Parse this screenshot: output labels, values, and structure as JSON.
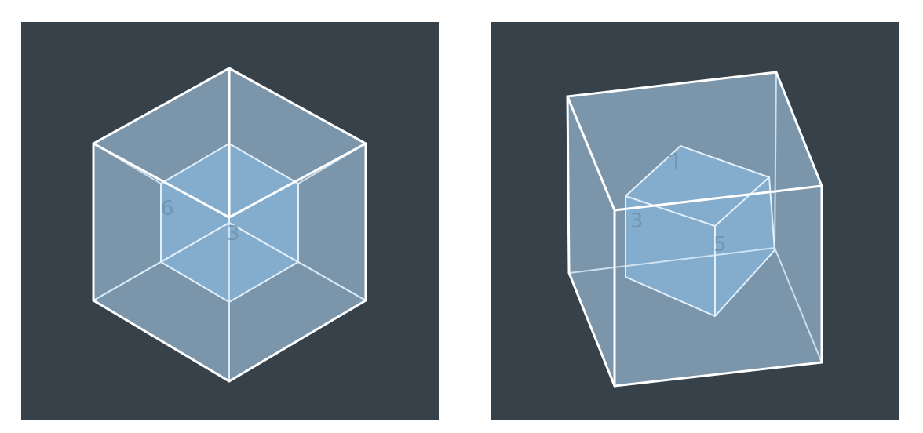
{
  "figures": [
    {
      "id": "left",
      "face_labels": [
        "6",
        "3"
      ]
    },
    {
      "id": "right",
      "face_labels": [
        "7",
        "3",
        "5"
      ]
    }
  ],
  "colors": {
    "background": "#36414a",
    "outer_face": "#a6cbe6",
    "inner_face": "#8cc0ea",
    "edge": "#ffffff"
  }
}
